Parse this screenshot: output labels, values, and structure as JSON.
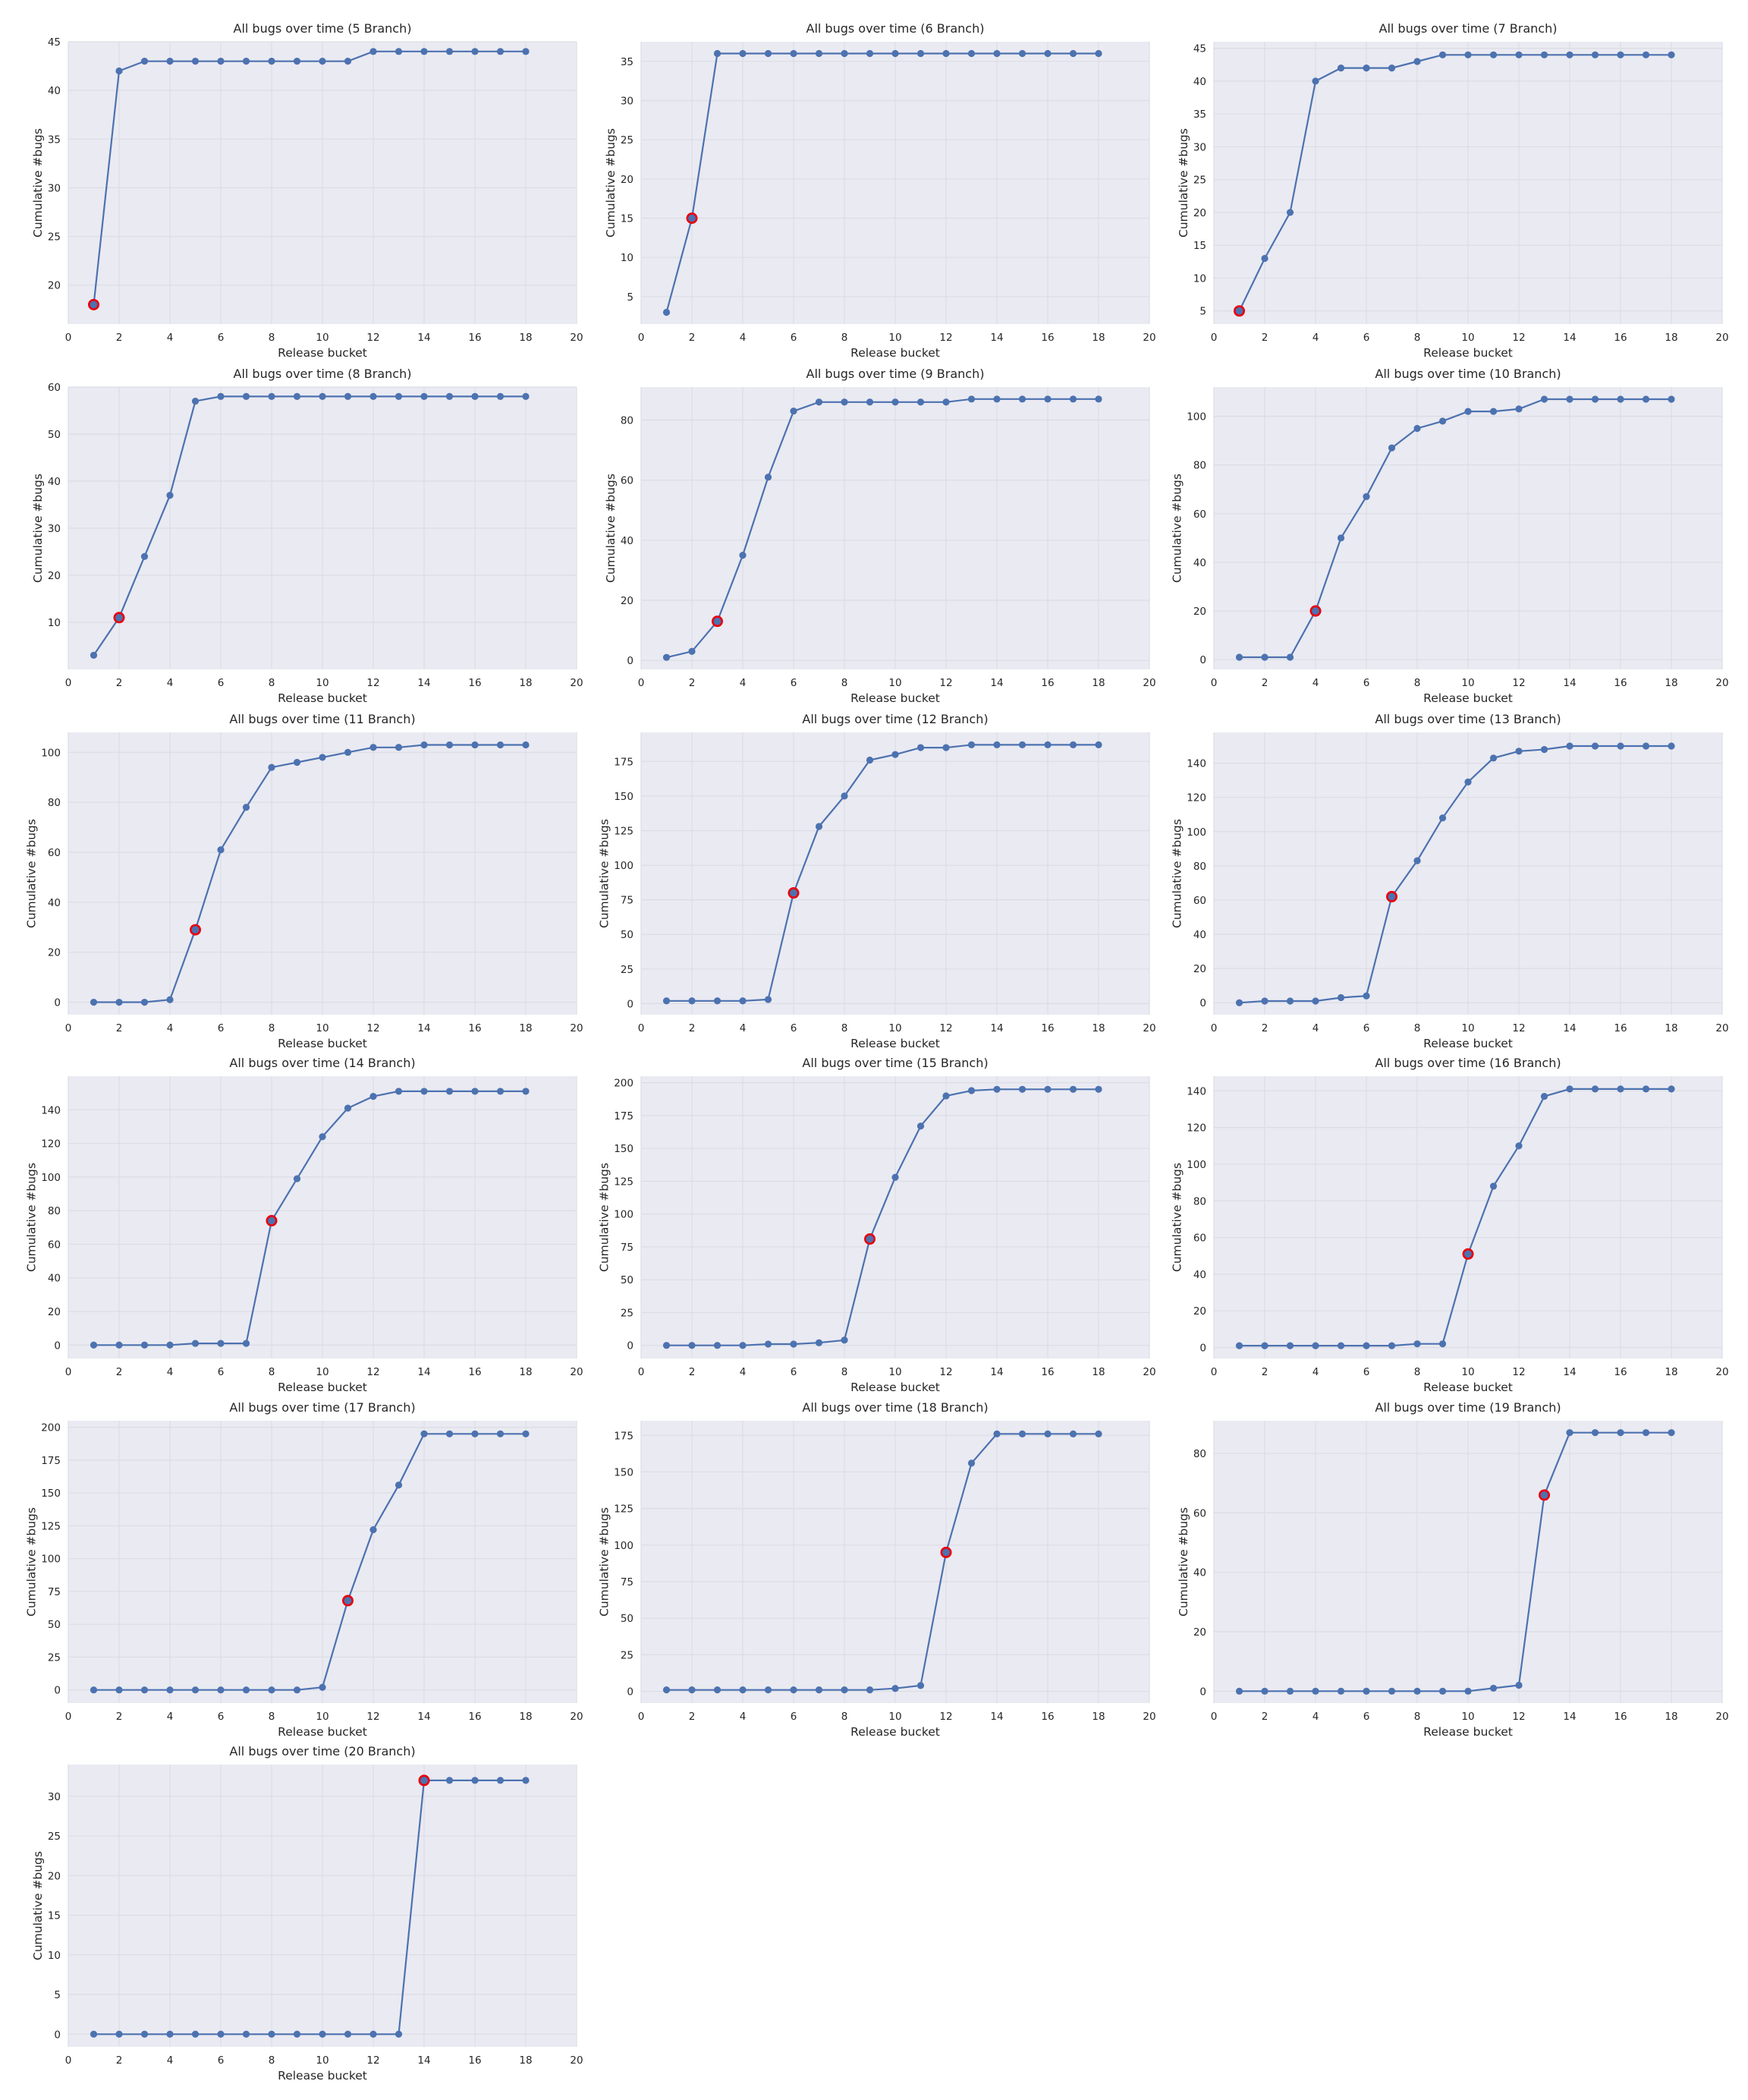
{
  "figure": {
    "colors": {
      "line": "#4c72b0",
      "marker": "#4c72b0",
      "highlight_edge": "#e8000b",
      "plot_background": "#eaeaf2",
      "grid": "#dcdce4"
    }
  },
  "chart_data": [
    {
      "type": "line",
      "title": "All bugs over time (5 Branch)",
      "xlabel": "Release bucket",
      "ylabel": "Cumulative #bugs",
      "xlim": [
        0,
        20
      ],
      "ylim": [
        16,
        45
      ],
      "xticks": [
        0,
        2,
        4,
        6,
        8,
        10,
        12,
        14,
        16,
        18,
        20
      ],
      "yticks": [
        20,
        25,
        30,
        35,
        40,
        45
      ],
      "x": [
        1,
        2,
        3,
        4,
        5,
        6,
        7,
        8,
        9,
        10,
        11,
        12,
        13,
        14,
        15,
        16,
        17,
        18
      ],
      "y": [
        18,
        42,
        43,
        43,
        43,
        43,
        43,
        43,
        43,
        43,
        43,
        44,
        44,
        44,
        44,
        44,
        44,
        44
      ],
      "highlight_x": 1,
      "grid": true
    },
    {
      "type": "line",
      "title": "All bugs over time (6 Branch)",
      "xlabel": "Release bucket",
      "ylabel": "Cumulative #bugs",
      "xlim": [
        0,
        20
      ],
      "ylim": [
        1.5,
        37.5
      ],
      "xticks": [
        0,
        2,
        4,
        6,
        8,
        10,
        12,
        14,
        16,
        18,
        20
      ],
      "yticks": [
        5,
        10,
        15,
        20,
        25,
        30,
        35
      ],
      "x": [
        1,
        2,
        3,
        4,
        5,
        6,
        7,
        8,
        9,
        10,
        11,
        12,
        13,
        14,
        15,
        16,
        17,
        18
      ],
      "y": [
        3,
        15,
        36,
        36,
        36,
        36,
        36,
        36,
        36,
        36,
        36,
        36,
        36,
        36,
        36,
        36,
        36,
        36
      ],
      "highlight_x": 2,
      "grid": true
    },
    {
      "type": "line",
      "title": "All bugs over time (7 Branch)",
      "xlabel": "Release bucket",
      "ylabel": "Cumulative #bugs",
      "xlim": [
        0,
        20
      ],
      "ylim": [
        3,
        46
      ],
      "xticks": [
        0,
        2,
        4,
        6,
        8,
        10,
        12,
        14,
        16,
        18,
        20
      ],
      "yticks": [
        5,
        10,
        15,
        20,
        25,
        30,
        35,
        40,
        45
      ],
      "x": [
        1,
        2,
        3,
        4,
        5,
        6,
        7,
        8,
        9,
        10,
        11,
        12,
        13,
        14,
        15,
        16,
        17,
        18
      ],
      "y": [
        5,
        13,
        20,
        40,
        42,
        42,
        42,
        43,
        44,
        44,
        44,
        44,
        44,
        44,
        44,
        44,
        44,
        44
      ],
      "highlight_x": 1,
      "grid": true
    },
    {
      "type": "line",
      "title": "All bugs over time (8 Branch)",
      "xlabel": "Release bucket",
      "ylabel": "Cumulative #bugs",
      "xlim": [
        0,
        20
      ],
      "ylim": [
        0,
        60
      ],
      "xticks": [
        0,
        2,
        4,
        6,
        8,
        10,
        12,
        14,
        16,
        18,
        20
      ],
      "yticks": [
        10,
        20,
        30,
        40,
        50,
        60
      ],
      "x": [
        1,
        2,
        3,
        4,
        5,
        6,
        7,
        8,
        9,
        10,
        11,
        12,
        13,
        14,
        15,
        16,
        17,
        18
      ],
      "y": [
        3,
        11,
        24,
        37,
        57,
        58,
        58,
        58,
        58,
        58,
        58,
        58,
        58,
        58,
        58,
        58,
        58,
        58
      ],
      "highlight_x": 2,
      "grid": true
    },
    {
      "type": "line",
      "title": "All bugs over time (9 Branch)",
      "xlabel": "Release bucket",
      "ylabel": "Cumulative #bugs",
      "xlim": [
        0,
        20
      ],
      "ylim": [
        -3,
        91
      ],
      "xticks": [
        0,
        2,
        4,
        6,
        8,
        10,
        12,
        14,
        16,
        18,
        20
      ],
      "yticks": [
        0,
        20,
        40,
        60,
        80
      ],
      "x": [
        1,
        2,
        3,
        4,
        5,
        6,
        7,
        8,
        9,
        10,
        11,
        12,
        13,
        14,
        15,
        16,
        17,
        18
      ],
      "y": [
        1,
        3,
        13,
        35,
        61,
        83,
        86,
        86,
        86,
        86,
        86,
        86,
        87,
        87,
        87,
        87,
        87,
        87
      ],
      "highlight_x": 3,
      "grid": true
    },
    {
      "type": "line",
      "title": "All bugs over time (10 Branch)",
      "xlabel": "Release bucket",
      "ylabel": "Cumulative #bugs",
      "xlim": [
        0,
        20
      ],
      "ylim": [
        -4,
        112
      ],
      "xticks": [
        0,
        2,
        4,
        6,
        8,
        10,
        12,
        14,
        16,
        18,
        20
      ],
      "yticks": [
        0,
        20,
        40,
        60,
        80,
        100
      ],
      "x": [
        1,
        2,
        3,
        4,
        5,
        6,
        7,
        8,
        9,
        10,
        11,
        12,
        13,
        14,
        15,
        16,
        17,
        18
      ],
      "y": [
        1,
        1,
        1,
        20,
        50,
        67,
        87,
        95,
        98,
        102,
        102,
        103,
        107,
        107,
        107,
        107,
        107,
        107
      ],
      "highlight_x": 4,
      "grid": true
    },
    {
      "type": "line",
      "title": "All bugs over time (11 Branch)",
      "xlabel": "Release bucket",
      "ylabel": "Cumulative #bugs",
      "xlim": [
        0,
        20
      ],
      "ylim": [
        -5,
        108
      ],
      "xticks": [
        0,
        2,
        4,
        6,
        8,
        10,
        12,
        14,
        16,
        18,
        20
      ],
      "yticks": [
        0,
        20,
        40,
        60,
        80,
        100
      ],
      "x": [
        1,
        2,
        3,
        4,
        5,
        6,
        7,
        8,
        9,
        10,
        11,
        12,
        13,
        14,
        15,
        16,
        17,
        18
      ],
      "y": [
        0,
        0,
        0,
        1,
        29,
        61,
        78,
        94,
        96,
        98,
        100,
        102,
        102,
        103,
        103,
        103,
        103,
        103
      ],
      "highlight_x": 5,
      "grid": true
    },
    {
      "type": "line",
      "title": "All bugs over time (12 Branch)",
      "xlabel": "Release bucket",
      "ylabel": "Cumulative #bugs",
      "xlim": [
        0,
        20
      ],
      "ylim": [
        -8,
        196
      ],
      "xticks": [
        0,
        2,
        4,
        6,
        8,
        10,
        12,
        14,
        16,
        18,
        20
      ],
      "yticks": [
        0,
        25,
        50,
        75,
        100,
        125,
        150,
        175
      ],
      "x": [
        1,
        2,
        3,
        4,
        5,
        6,
        7,
        8,
        9,
        10,
        11,
        12,
        13,
        14,
        15,
        16,
        17,
        18
      ],
      "y": [
        2,
        2,
        2,
        2,
        3,
        80,
        128,
        150,
        176,
        180,
        185,
        185,
        187,
        187,
        187,
        187,
        187,
        187
      ],
      "highlight_x": 6,
      "grid": true
    },
    {
      "type": "line",
      "title": "All bugs over time (13 Branch)",
      "xlabel": "Release bucket",
      "ylabel": "Cumulative #bugs",
      "xlim": [
        0,
        20
      ],
      "ylim": [
        -7,
        158
      ],
      "xticks": [
        0,
        2,
        4,
        6,
        8,
        10,
        12,
        14,
        16,
        18,
        20
      ],
      "yticks": [
        0,
        20,
        40,
        60,
        80,
        100,
        120,
        140
      ],
      "x": [
        1,
        2,
        3,
        4,
        5,
        6,
        7,
        8,
        9,
        10,
        11,
        12,
        13,
        14,
        15,
        16,
        17,
        18
      ],
      "y": [
        0,
        1,
        1,
        1,
        3,
        4,
        62,
        83,
        108,
        129,
        143,
        147,
        148,
        150,
        150,
        150,
        150,
        150
      ],
      "highlight_x": 7,
      "grid": true
    },
    {
      "type": "line",
      "title": "All bugs over time (14 Branch)",
      "xlabel": "Release bucket",
      "ylabel": "Cumulative #bugs",
      "xlim": [
        0,
        20
      ],
      "ylim": [
        -8,
        160
      ],
      "xticks": [
        0,
        2,
        4,
        6,
        8,
        10,
        12,
        14,
        16,
        18,
        20
      ],
      "yticks": [
        0,
        20,
        40,
        60,
        80,
        100,
        120,
        140
      ],
      "x": [
        1,
        2,
        3,
        4,
        5,
        6,
        7,
        8,
        9,
        10,
        11,
        12,
        13,
        14,
        15,
        16,
        17,
        18
      ],
      "y": [
        0,
        0,
        0,
        0,
        1,
        1,
        1,
        74,
        99,
        124,
        141,
        148,
        151,
        151,
        151,
        151,
        151,
        151
      ],
      "highlight_x": 8,
      "grid": true
    },
    {
      "type": "line",
      "title": "All bugs over time (15 Branch)",
      "xlabel": "Release bucket",
      "ylabel": "Cumulative #bugs",
      "xlim": [
        0,
        20
      ],
      "ylim": [
        -10,
        205
      ],
      "xticks": [
        0,
        2,
        4,
        6,
        8,
        10,
        12,
        14,
        16,
        18,
        20
      ],
      "yticks": [
        0,
        25,
        50,
        75,
        100,
        125,
        150,
        175,
        200
      ],
      "x": [
        1,
        2,
        3,
        4,
        5,
        6,
        7,
        8,
        9,
        10,
        11,
        12,
        13,
        14,
        15,
        16,
        17,
        18
      ],
      "y": [
        0,
        0,
        0,
        0,
        1,
        1,
        2,
        4,
        81,
        128,
        167,
        190,
        194,
        195,
        195,
        195,
        195,
        195
      ],
      "highlight_x": 9,
      "grid": true
    },
    {
      "type": "line",
      "title": "All bugs over time (16 Branch)",
      "xlabel": "Release bucket",
      "ylabel": "Cumulative #bugs",
      "xlim": [
        0,
        20
      ],
      "ylim": [
        -6,
        148
      ],
      "xticks": [
        0,
        2,
        4,
        6,
        8,
        10,
        12,
        14,
        16,
        18,
        20
      ],
      "yticks": [
        0,
        20,
        40,
        60,
        80,
        100,
        120,
        140
      ],
      "x": [
        1,
        2,
        3,
        4,
        5,
        6,
        7,
        8,
        9,
        10,
        11,
        12,
        13,
        14,
        15,
        16,
        17,
        18
      ],
      "y": [
        1,
        1,
        1,
        1,
        1,
        1,
        1,
        2,
        2,
        51,
        88,
        110,
        137,
        141,
        141,
        141,
        141,
        141
      ],
      "highlight_x": 10,
      "grid": true
    },
    {
      "type": "line",
      "title": "All bugs over time (17 Branch)",
      "xlabel": "Release bucket",
      "ylabel": "Cumulative #bugs",
      "xlim": [
        0,
        20
      ],
      "ylim": [
        -10,
        205
      ],
      "xticks": [
        0,
        2,
        4,
        6,
        8,
        10,
        12,
        14,
        16,
        18,
        20
      ],
      "yticks": [
        0,
        25,
        50,
        75,
        100,
        125,
        150,
        175,
        200
      ],
      "x": [
        1,
        2,
        3,
        4,
        5,
        6,
        7,
        8,
        9,
        10,
        11,
        12,
        13,
        14,
        15,
        16,
        17,
        18
      ],
      "y": [
        0,
        0,
        0,
        0,
        0,
        0,
        0,
        0,
        0,
        2,
        68,
        122,
        156,
        195,
        195,
        195,
        195,
        195
      ],
      "highlight_x": 11,
      "grid": true
    },
    {
      "type": "line",
      "title": "All bugs over time (18 Branch)",
      "xlabel": "Release bucket",
      "ylabel": "Cumulative #bugs",
      "xlim": [
        0,
        20
      ],
      "ylim": [
        -8,
        185
      ],
      "xticks": [
        0,
        2,
        4,
        6,
        8,
        10,
        12,
        14,
        16,
        18,
        20
      ],
      "yticks": [
        0,
        25,
        50,
        75,
        100,
        125,
        150,
        175
      ],
      "x": [
        1,
        2,
        3,
        4,
        5,
        6,
        7,
        8,
        9,
        10,
        11,
        12,
        13,
        14,
        15,
        16,
        17,
        18
      ],
      "y": [
        1,
        1,
        1,
        1,
        1,
        1,
        1,
        1,
        1,
        2,
        4,
        95,
        156,
        176,
        176,
        176,
        176,
        176
      ],
      "highlight_x": 12,
      "grid": true
    },
    {
      "type": "line",
      "title": "All bugs over time (19 Branch)",
      "xlabel": "Release bucket",
      "ylabel": "Cumulative #bugs",
      "xlim": [
        0,
        20
      ],
      "ylim": [
        -4,
        91
      ],
      "xticks": [
        0,
        2,
        4,
        6,
        8,
        10,
        12,
        14,
        16,
        18,
        20
      ],
      "yticks": [
        0,
        20,
        40,
        60,
        80
      ],
      "x": [
        1,
        2,
        3,
        4,
        5,
        6,
        7,
        8,
        9,
        10,
        11,
        12,
        13,
        14,
        15,
        16,
        17,
        18
      ],
      "y": [
        0,
        0,
        0,
        0,
        0,
        0,
        0,
        0,
        0,
        0,
        1,
        2,
        66,
        87,
        87,
        87,
        87,
        87
      ],
      "highlight_x": 13,
      "grid": true
    },
    {
      "type": "line",
      "title": "All bugs over time (20 Branch)",
      "xlabel": "Release bucket",
      "ylabel": "Cumulative #bugs",
      "xlim": [
        0,
        20
      ],
      "ylim": [
        -1.6,
        34
      ],
      "xticks": [
        0,
        2,
        4,
        6,
        8,
        10,
        12,
        14,
        16,
        18,
        20
      ],
      "yticks": [
        0,
        5,
        10,
        15,
        20,
        25,
        30
      ],
      "x": [
        1,
        2,
        3,
        4,
        5,
        6,
        7,
        8,
        9,
        10,
        11,
        12,
        13,
        14,
        15,
        16,
        17,
        18
      ],
      "y": [
        0,
        0,
        0,
        0,
        0,
        0,
        0,
        0,
        0,
        0,
        0,
        0,
        0,
        32,
        32,
        32,
        32,
        32
      ],
      "highlight_x": 14,
      "grid": true
    }
  ]
}
